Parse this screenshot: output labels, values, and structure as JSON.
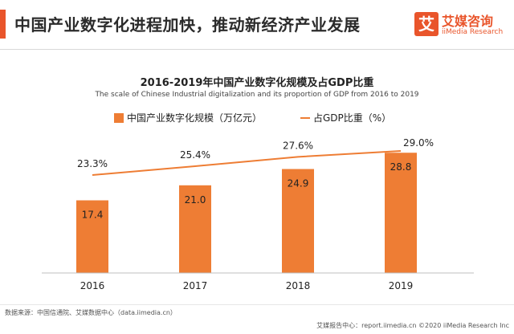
{
  "header": {
    "title": "中国产业数字化进程加快，推动新经济产业发展"
  },
  "logo": {
    "mark": "艾",
    "cn": "艾媒咨询",
    "en": "iiMedia Research"
  },
  "colors": {
    "accent": "#e9552b",
    "bar": "#ee7d34",
    "line": "#ee7d34"
  },
  "chart_data": {
    "type": "bar",
    "title": "2016-2019年中国产业数字化规模及占GDP比重",
    "subtitle": "The scale of Chinese Industrial digitalization and its proportion of GDP from 2016 to 2019",
    "categories": [
      "2016",
      "2017",
      "2018",
      "2019"
    ],
    "series": [
      {
        "name": "中国产业数字化规模（万亿元）",
        "type": "bar",
        "values": [
          17.4,
          21.0,
          24.9,
          28.8
        ],
        "labels": [
          "17.4",
          "21.0",
          "24.9",
          "28.8"
        ]
      },
      {
        "name": "占GDP比重（%）",
        "type": "line",
        "values": [
          23.3,
          25.4,
          27.6,
          29.0
        ],
        "labels": [
          "23.3%",
          "25.4%",
          "27.6%",
          "29.0%"
        ]
      }
    ],
    "legend": "top-center",
    "grid": false
  },
  "footer": {
    "source": "数据来源：中国信通院、艾媒数据中心（data.iimedia.cn）",
    "copyright": "艾媒报告中心：report.iimedia.cn ©2020  iiMedia Research Inc"
  }
}
